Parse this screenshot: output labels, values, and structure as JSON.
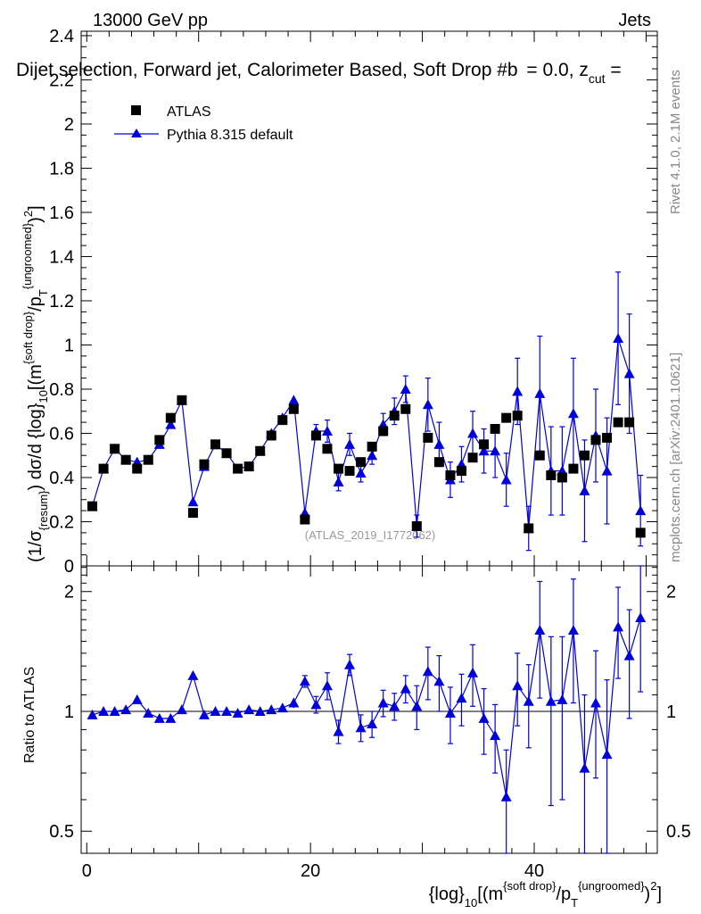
{
  "header": {
    "energy_label": "13000 GeV pp",
    "category_label": "Jets",
    "title": "Dijet selection, Forward jet, Calorimeter Based, Soft Drop #b",
    "title_suffix_eq": "= 0.0, z",
    "title_suffix_sub": "cut",
    "title_suffix_end": " ="
  },
  "side_labels": {
    "rivet": "Rivet 4.1.0,  2.1M events",
    "mcplots": "mcplots.cern.ch [arXiv:2401.10621]"
  },
  "watermark": "(ATLAS_2019_I1772062)",
  "axis_labels": {
    "y_main_a": "(1/σ",
    "y_main_a_sub": "{resum}",
    "y_main_b": ") dσ/d {log}",
    "y_main_b_sub": "10",
    "y_main_c": "[(m",
    "y_main_c_sup": "{soft drop}",
    "y_main_d": "/p",
    "y_main_d_sub": "T",
    "y_main_d_sup": "{ungroomed}",
    "y_main_e": ")",
    "y_main_e_sup": "2",
    "y_main_f": "]",
    "y_ratio": "Ratio to ATLAS",
    "x_a": "{log}",
    "x_a_sub": "10",
    "x_b": "[(m",
    "x_b_sup": "{soft drop}",
    "x_c": "/p",
    "x_c_sub": "T",
    "x_c_sup": "{ungroomed}",
    "x_d": ")",
    "x_d_sup": "2",
    "x_e": "]"
  },
  "legend": [
    {
      "name": "ATLAS",
      "marker": "square",
      "color": "#000000"
    },
    {
      "name": "Pythia 8.315 default",
      "marker": "triangle",
      "color": "#0000dd"
    }
  ],
  "chart_data": [
    {
      "type": "scatter",
      "panel": "main",
      "x": [
        0.5,
        1.5,
        2.5,
        3.5,
        4.5,
        5.5,
        6.5,
        7.5,
        8.5,
        9.5,
        10.5,
        11.5,
        12.5,
        13.5,
        14.5,
        15.5,
        16.5,
        17.5,
        18.5,
        19.5,
        20.5,
        21.5,
        22.5,
        23.5,
        24.5,
        25.5,
        26.5,
        27.5,
        28.5,
        29.5,
        30.5,
        31.5,
        32.5,
        33.5,
        34.5,
        35.5,
        36.5,
        37.5,
        38.5,
        39.5,
        40.5,
        41.5,
        42.5,
        43.5,
        44.5,
        45.5,
        46.5,
        47.5,
        48.5,
        49.5
      ],
      "xlim": [
        -0.5,
        51
      ],
      "ylim": [
        0,
        2.42
      ],
      "x_ticks": [
        0,
        20,
        40
      ],
      "y_ticks": [
        0,
        0.2,
        0.4,
        0.6,
        0.8,
        1,
        1.2,
        1.4,
        1.6,
        1.8,
        2,
        2.2,
        2.4
      ],
      "y_tick_labels": [
        "0",
        "0.2",
        "0.4",
        "0.6",
        "0.8",
        "1",
        "1.2",
        "1.4",
        "1.6",
        "1.8",
        "2",
        "2.2",
        "2.4"
      ],
      "series": [
        {
          "name": "ATLAS",
          "values": [
            0.27,
            0.44,
            0.53,
            0.48,
            0.44,
            0.48,
            0.57,
            0.67,
            0.75,
            0.24,
            0.46,
            0.55,
            0.51,
            0.44,
            0.45,
            0.52,
            0.59,
            0.66,
            0.71,
            0.21,
            0.59,
            0.53,
            0.44,
            0.43,
            0.47,
            0.54,
            0.61,
            0.68,
            0.71,
            0.18,
            0.58,
            0.47,
            0.41,
            0.43,
            0.49,
            0.55,
            0.62,
            0.67,
            0.68,
            0.17,
            0.5,
            0.41,
            0.4,
            0.44,
            0.5,
            0.57,
            0.58,
            0.65,
            0.65,
            0.15
          ]
        },
        {
          "name": "Pythia 8.315 default",
          "values": [
            0.27,
            0.44,
            0.53,
            0.48,
            0.47,
            0.48,
            0.55,
            0.64,
            0.75,
            0.29,
            0.45,
            0.55,
            0.51,
            0.44,
            0.45,
            0.52,
            0.6,
            0.67,
            0.75,
            0.24,
            0.61,
            0.61,
            0.38,
            0.55,
            0.42,
            0.5,
            0.64,
            0.7,
            0.8,
            0.18,
            0.73,
            0.55,
            0.39,
            0.46,
            0.6,
            0.52,
            0.52,
            0.39,
            0.79,
            0.17,
            0.78,
            0.43,
            0.43,
            0.69,
            0.34,
            0.59,
            0.43,
            1.03,
            0.87,
            0.25
          ],
          "errors": [
            0.01,
            0.01,
            0.01,
            0.01,
            0.01,
            0.01,
            0.01,
            0.01,
            0.01,
            0.01,
            0.01,
            0.01,
            0.01,
            0.01,
            0.01,
            0.01,
            0.01,
            0.01,
            0.02,
            0.02,
            0.03,
            0.05,
            0.04,
            0.05,
            0.04,
            0.04,
            0.05,
            0.06,
            0.06,
            0.05,
            0.12,
            0.1,
            0.08,
            0.08,
            0.1,
            0.1,
            0.12,
            0.12,
            0.15,
            0.1,
            0.26,
            0.2,
            0.2,
            0.25,
            0.23,
            0.21,
            0.24,
            0.3,
            0.27,
            0.16
          ]
        }
      ]
    },
    {
      "type": "scatter",
      "panel": "ratio",
      "x": [
        0.5,
        1.5,
        2.5,
        3.5,
        4.5,
        5.5,
        6.5,
        7.5,
        8.5,
        9.5,
        10.5,
        11.5,
        12.5,
        13.5,
        14.5,
        15.5,
        16.5,
        17.5,
        18.5,
        19.5,
        20.5,
        21.5,
        22.5,
        23.5,
        24.5,
        25.5,
        26.5,
        27.5,
        28.5,
        29.5,
        30.5,
        31.5,
        32.5,
        33.5,
        34.5,
        35.5,
        36.5,
        37.5,
        38.5,
        39.5,
        40.5,
        41.5,
        42.5,
        43.5,
        44.5,
        45.5,
        46.5,
        47.5,
        48.5,
        49.5
      ],
      "xlim": [
        -0.5,
        51
      ],
      "ylim": [
        0.44,
        2.32
      ],
      "y_scale": "log",
      "y_ticks": [
        0.5,
        1,
        2
      ],
      "y_tick_labels": [
        "0.5",
        "1",
        "2"
      ],
      "x_tick_labels": [
        "0",
        "20",
        "40"
      ],
      "reference": 1,
      "series": [
        {
          "name": "Pythia 8.315 default / ATLAS",
          "values": [
            0.98,
            1.0,
            1.0,
            1.01,
            1.07,
            0.99,
            0.96,
            0.96,
            1.01,
            1.23,
            0.98,
            1.0,
            1.0,
            0.99,
            1.01,
            1.0,
            1.01,
            1.02,
            1.05,
            1.19,
            1.04,
            1.16,
            0.89,
            1.31,
            0.91,
            0.93,
            1.05,
            1.03,
            1.14,
            1.03,
            1.26,
            1.19,
            0.99,
            1.08,
            1.25,
            0.96,
            0.87,
            0.61,
            1.16,
            1.06,
            1.6,
            1.06,
            1.07,
            1.6,
            0.72,
            1.05,
            0.78,
            1.63,
            1.38,
            1.72
          ],
          "errors": [
            0.01,
            0.01,
            0.01,
            0.01,
            0.02,
            0.01,
            0.01,
            0.01,
            0.01,
            0.02,
            0.02,
            0.02,
            0.02,
            0.02,
            0.02,
            0.02,
            0.02,
            0.02,
            0.03,
            0.04,
            0.05,
            0.09,
            0.06,
            0.08,
            0.07,
            0.07,
            0.08,
            0.08,
            0.09,
            0.13,
            0.19,
            0.19,
            0.16,
            0.16,
            0.22,
            0.18,
            0.17,
            0.19,
            0.24,
            0.25,
            0.52,
            0.48,
            0.47,
            0.55,
            0.38,
            0.37,
            0.42,
            0.42,
            0.42,
            0.6
          ]
        }
      ]
    }
  ]
}
